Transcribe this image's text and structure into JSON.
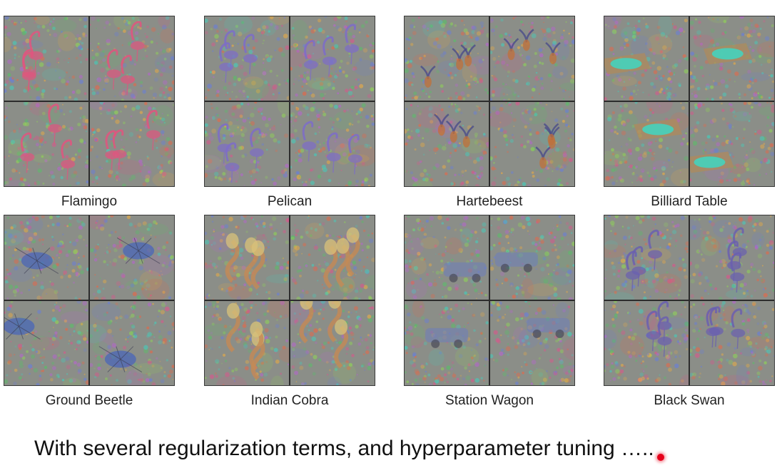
{
  "panels": [
    {
      "label": "Flamingo",
      "theme": "flamingo",
      "tint": "#e0557f"
    },
    {
      "label": "Pelican",
      "theme": "pelican",
      "tint": "#7d6cc9"
    },
    {
      "label": "Hartebeest",
      "theme": "hartebeest",
      "tint": "#c0703a"
    },
    {
      "label": "Billiard Table",
      "theme": "billiard",
      "tint": "#3fd6c2"
    },
    {
      "label": "Ground Beetle",
      "theme": "beetle",
      "tint": "#4a66b8"
    },
    {
      "label": "Indian Cobra",
      "theme": "cobra",
      "tint": "#c48a55"
    },
    {
      "label": "Station Wagon",
      "theme": "wagon",
      "tint": "#6f7fb8"
    },
    {
      "label": "Black Swan",
      "theme": "swan",
      "tint": "#6a5fb0"
    }
  ],
  "subtitle": "With several regularization terms, and hyperparameter tuning ….."
}
